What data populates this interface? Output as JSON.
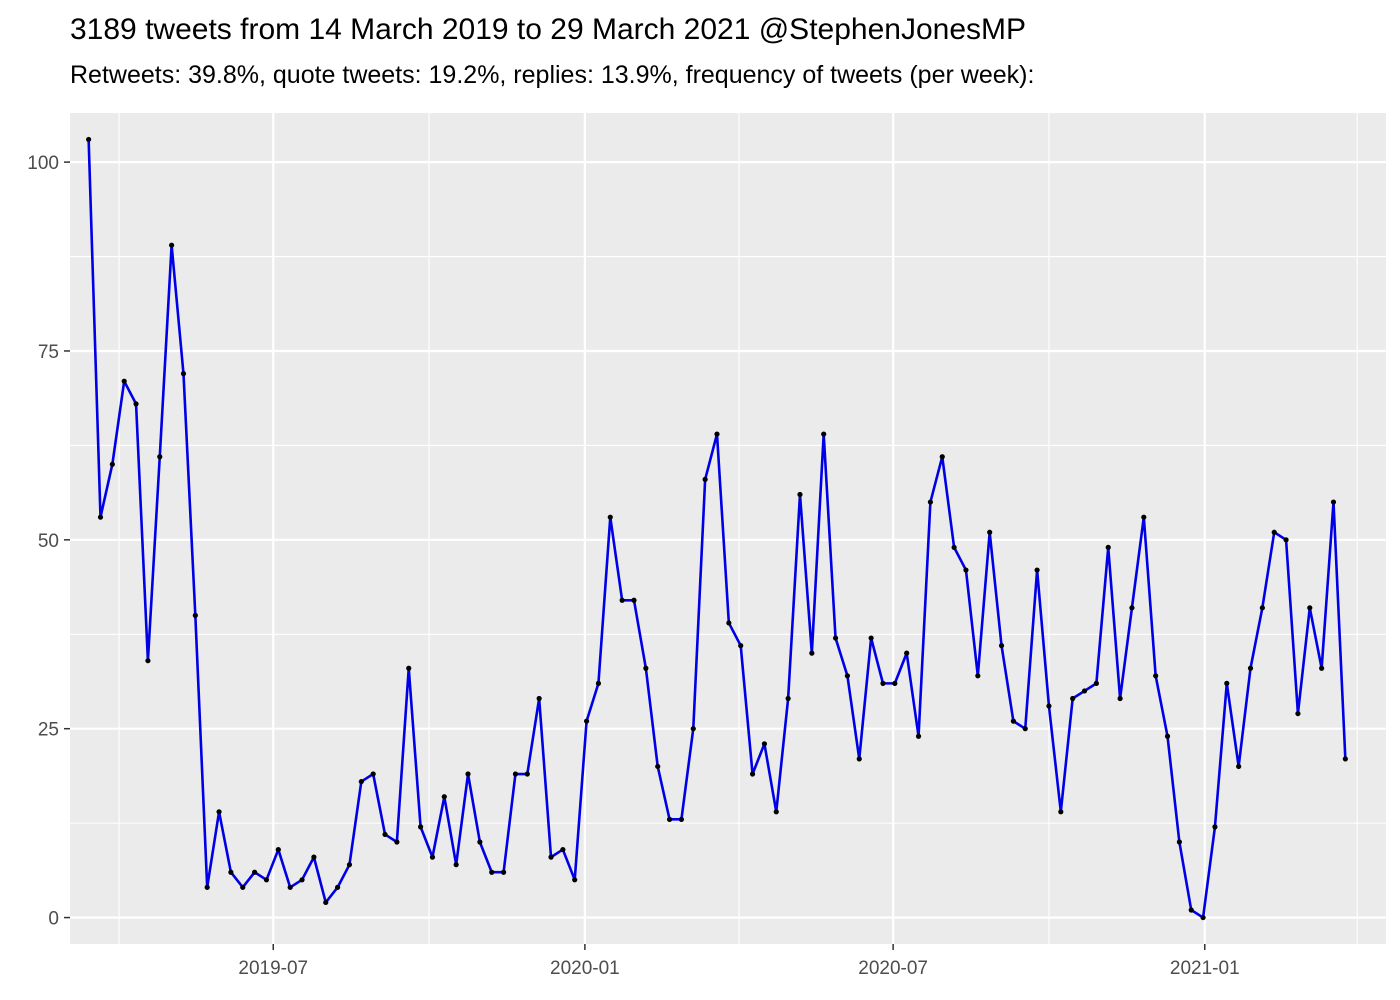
{
  "chart_data": {
    "type": "line",
    "title": "3189 tweets from 14 March 2019 to 29 March 2021 @StephenJonesMP",
    "subtitle": "Retweets: 39.8%, quote tweets: 19.2%, replies: 13.9%, frequency of tweets (per week):",
    "xlabel": "",
    "ylabel": "",
    "x_axis": {
      "type": "date",
      "range": [
        "2019-03-03",
        "2021-04-18"
      ],
      "ticks": [
        {
          "date": "2019-07-01",
          "label": "2019-07"
        },
        {
          "date": "2020-01-01",
          "label": "2020-01"
        },
        {
          "date": "2020-07-01",
          "label": "2020-07"
        },
        {
          "date": "2021-01-01",
          "label": "2021-01"
        }
      ],
      "minor_ticks": [
        "2019-04-01",
        "2019-10-01",
        "2020-04-01",
        "2020-10-01",
        "2021-04-01"
      ]
    },
    "y_axis": {
      "range": [
        -3.5,
        106.5
      ],
      "ticks": [
        0,
        25,
        50,
        75,
        100
      ]
    },
    "grid": true,
    "background_color": "#ebebeb",
    "grid_color": "#ffffff",
    "line_color": "#0000e6",
    "point_color": "#000000",
    "series": [
      {
        "x": [
          "2019-03-14",
          "2019-03-21",
          "2019-03-28",
          "2019-04-04",
          "2019-04-11",
          "2019-04-18",
          "2019-04-25",
          "2019-05-02",
          "2019-05-09",
          "2019-05-16",
          "2019-05-23",
          "2019-05-30",
          "2019-06-06",
          "2019-06-13",
          "2019-06-20",
          "2019-06-27",
          "2019-07-04",
          "2019-07-11",
          "2019-07-18",
          "2019-07-25",
          "2019-08-01",
          "2019-08-08",
          "2019-08-15",
          "2019-08-22",
          "2019-08-29",
          "2019-09-05",
          "2019-09-12",
          "2019-09-19",
          "2019-09-26",
          "2019-10-03",
          "2019-10-10",
          "2019-10-17",
          "2019-10-24",
          "2019-10-31",
          "2019-11-07",
          "2019-11-14",
          "2019-11-21",
          "2019-11-28",
          "2019-12-05",
          "2019-12-12",
          "2019-12-19",
          "2019-12-26",
          "2020-01-02",
          "2020-01-09",
          "2020-01-16",
          "2020-01-23",
          "2020-01-30",
          "2020-02-06",
          "2020-02-13",
          "2020-02-20",
          "2020-02-27",
          "2020-03-05",
          "2020-03-12",
          "2020-03-19",
          "2020-03-26",
          "2020-04-02",
          "2020-04-09",
          "2020-04-16",
          "2020-04-23",
          "2020-04-30",
          "2020-05-07",
          "2020-05-14",
          "2020-05-21",
          "2020-05-28",
          "2020-06-04",
          "2020-06-11",
          "2020-06-18",
          "2020-06-25",
          "2020-07-02",
          "2020-07-09",
          "2020-07-16",
          "2020-07-23",
          "2020-07-30",
          "2020-08-06",
          "2020-08-13",
          "2020-08-20",
          "2020-08-27",
          "2020-09-03",
          "2020-09-10",
          "2020-09-17",
          "2020-09-24",
          "2020-10-01",
          "2020-10-08",
          "2020-10-15",
          "2020-10-22",
          "2020-10-29",
          "2020-11-05",
          "2020-11-12",
          "2020-11-19",
          "2020-11-26",
          "2020-12-03",
          "2020-12-10",
          "2020-12-17",
          "2020-12-24",
          "2020-12-31",
          "2021-01-07",
          "2021-01-14",
          "2021-01-21",
          "2021-01-28",
          "2021-02-04",
          "2021-02-11",
          "2021-02-18",
          "2021-02-25",
          "2021-03-04",
          "2021-03-11",
          "2021-03-18",
          "2021-03-25"
        ],
        "y": [
          103,
          53,
          60,
          71,
          68,
          34,
          61,
          89,
          72,
          40,
          4,
          14,
          6,
          4,
          6,
          5,
          9,
          4,
          5,
          8,
          2,
          4,
          7,
          18,
          19,
          11,
          10,
          33,
          12,
          8,
          16,
          7,
          19,
          10,
          6,
          6,
          19,
          19,
          29,
          8,
          9,
          5,
          26,
          31,
          53,
          42,
          42,
          33,
          20,
          13,
          13,
          25,
          58,
          64,
          39,
          36,
          19,
          23,
          14,
          29,
          56,
          35,
          64,
          37,
          32,
          21,
          37,
          31,
          31,
          35,
          24,
          55,
          61,
          49,
          46,
          32,
          51,
          36,
          26,
          25,
          46,
          28,
          14,
          29,
          30,
          31,
          49,
          29,
          41,
          53,
          32,
          24,
          10,
          1,
          0,
          12,
          31,
          20,
          33,
          41,
          51,
          50,
          27,
          41,
          33,
          55,
          21
        ]
      }
    ]
  }
}
